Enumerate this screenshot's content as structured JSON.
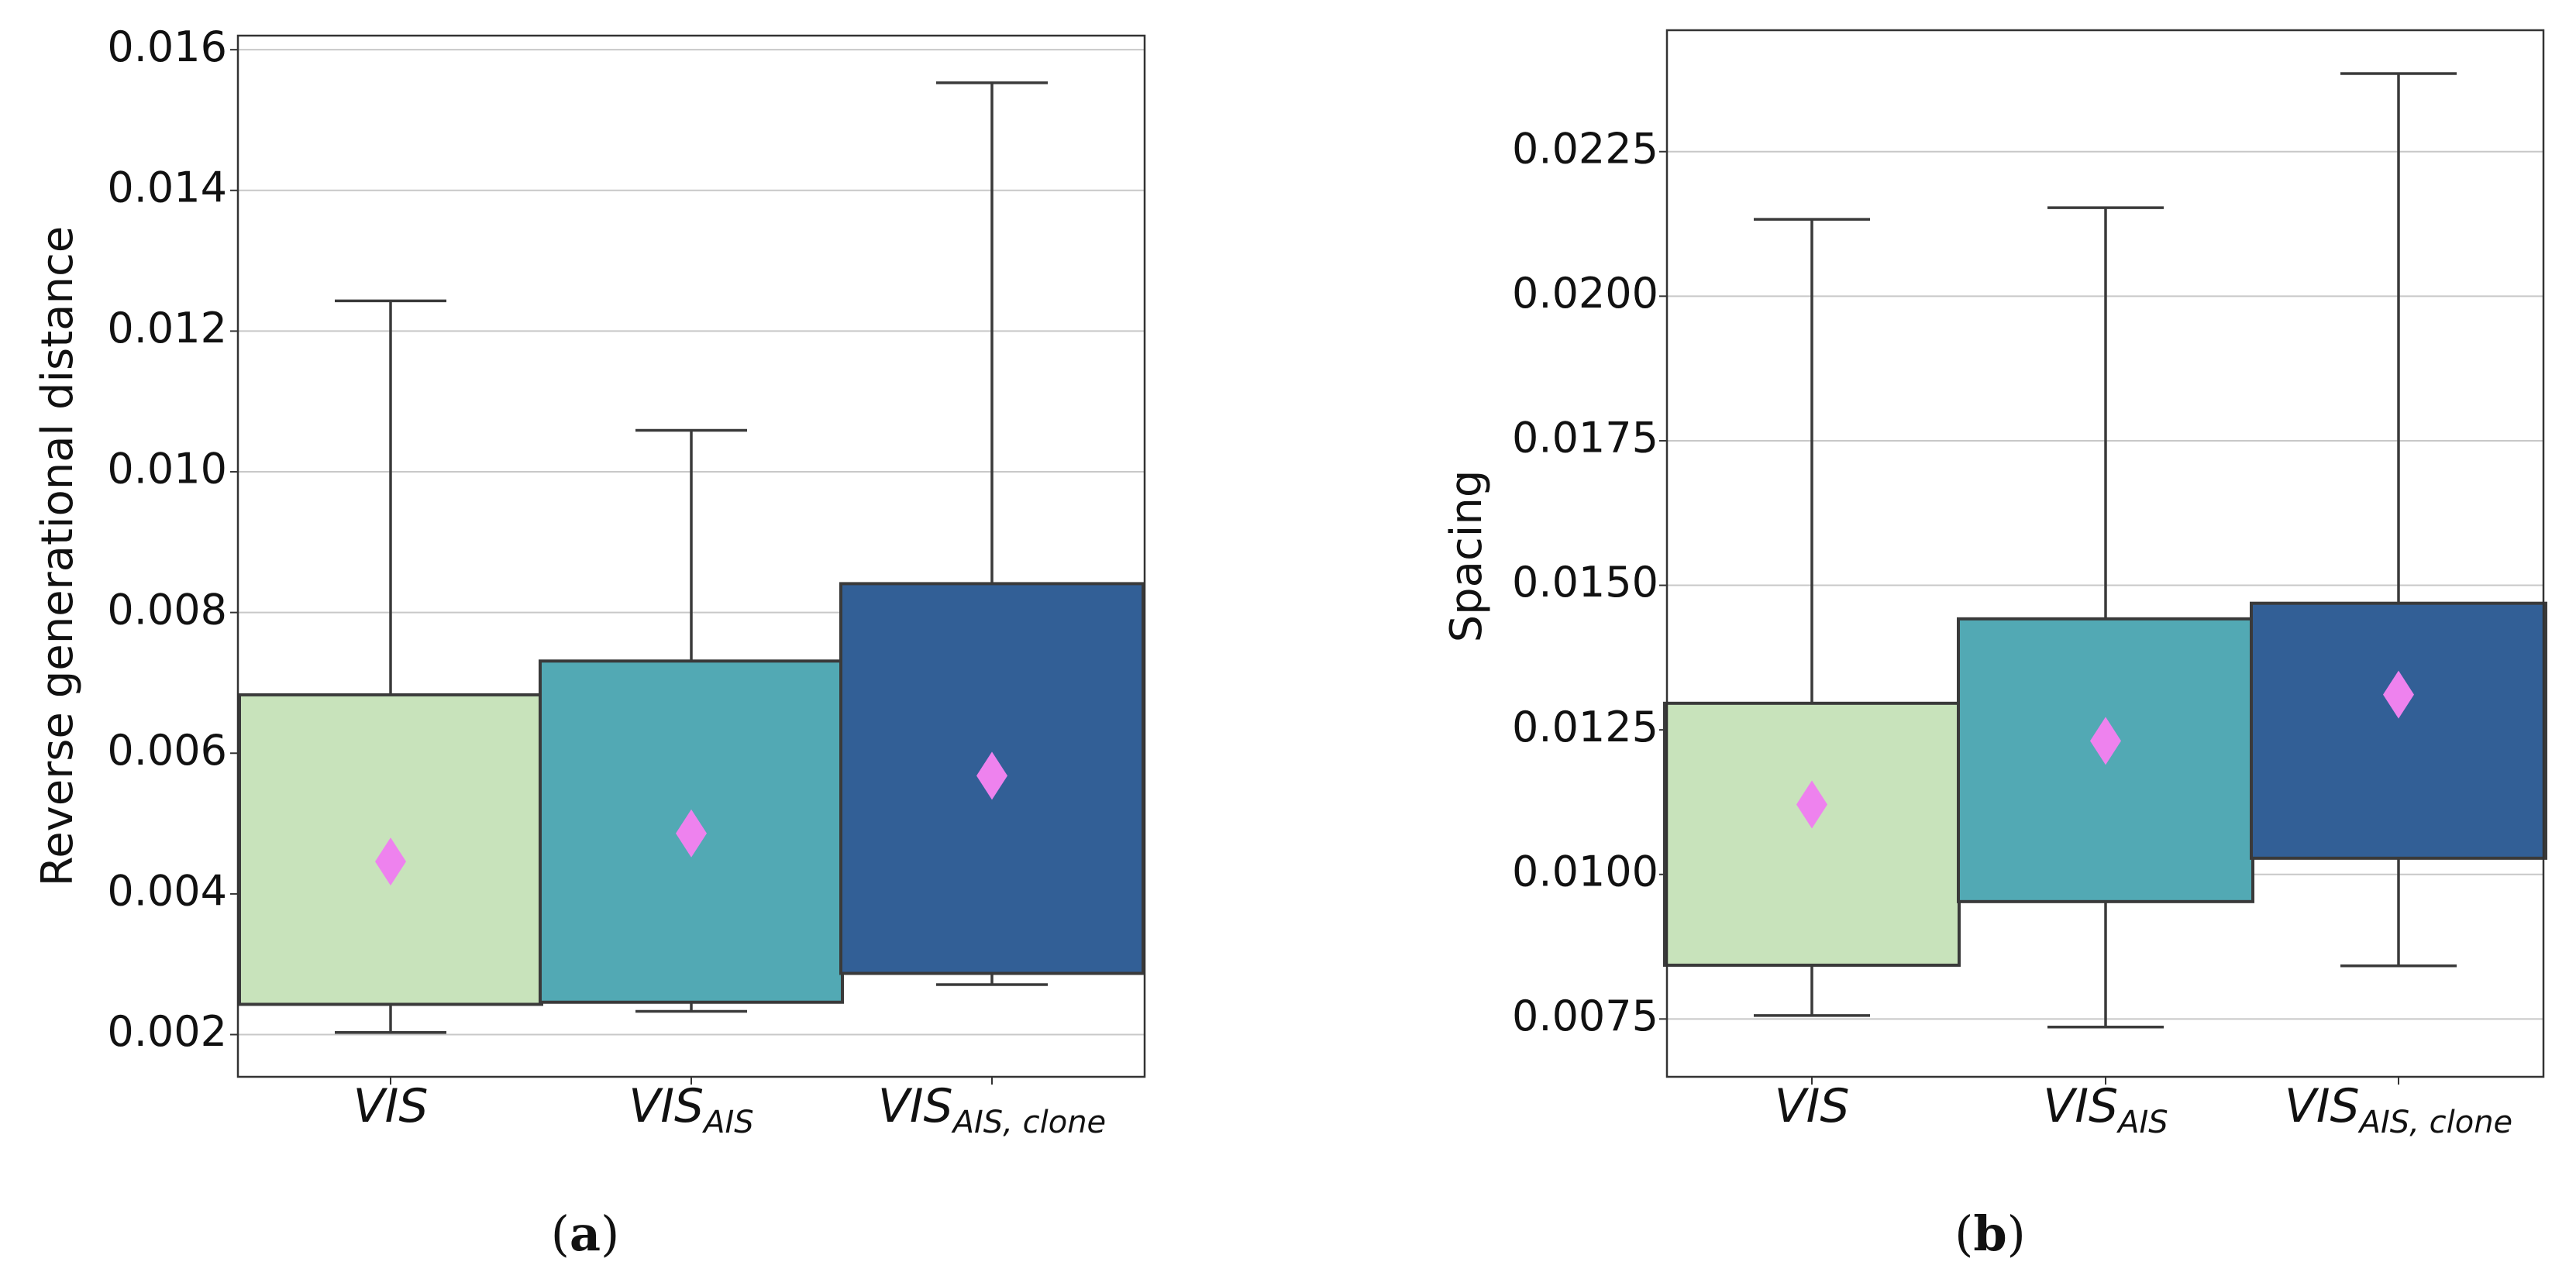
{
  "chart_data": [
    {
      "type": "box",
      "panel_label": "a",
      "title": "",
      "ylabel": "Reverse generational distance",
      "xlabel": "",
      "ylim": [
        0.0014,
        0.0162
      ],
      "yticks": [
        0.002,
        0.004,
        0.006,
        0.008,
        0.01,
        0.012,
        0.014,
        0.016
      ],
      "ytick_labels": [
        "0.002",
        "0.004",
        "0.006",
        "0.008",
        "0.010",
        "0.012",
        "0.014",
        "0.016"
      ],
      "grid": "horizontal",
      "categories": [
        {
          "base": "VIS",
          "sub": ""
        },
        {
          "base": "VIS",
          "sub": "AIS"
        },
        {
          "base": "VIS",
          "sub": "AIS, clone"
        }
      ],
      "boxes": [
        {
          "whisker_low": 0.00203,
          "q1": 0.00243,
          "q3": 0.00683,
          "whisker_high": 0.01243,
          "mean": 0.00446,
          "color": "#c8e3bb"
        },
        {
          "whisker_low": 0.00233,
          "q1": 0.00246,
          "q3": 0.00731,
          "whisker_high": 0.01059,
          "mean": 0.00486,
          "color": "#52a9b4"
        },
        {
          "whisker_low": 0.00271,
          "q1": 0.00287,
          "q3": 0.00841,
          "whisker_high": 0.01553,
          "mean": 0.00568,
          "color": "#325f96"
        }
      ],
      "mean_marker": {
        "shape": "diamond",
        "color": "#ee82ee"
      }
    },
    {
      "type": "box",
      "panel_label": "b",
      "title": "",
      "ylabel": "Spacing",
      "xlabel": "",
      "ylim": [
        0.0065,
        0.0246
      ],
      "yticks": [
        0.0075,
        0.01,
        0.0125,
        0.015,
        0.0175,
        0.02,
        0.0225
      ],
      "ytick_labels": [
        "0.0075",
        "0.0100",
        "0.0125",
        "0.0150",
        "0.0175",
        "0.0200",
        "0.0225"
      ],
      "grid": "horizontal",
      "categories": [
        {
          "base": "VIS",
          "sub": ""
        },
        {
          "base": "VIS",
          "sub": "AIS"
        },
        {
          "base": "VIS",
          "sub": "AIS, clone"
        }
      ],
      "boxes": [
        {
          "whisker_low": 0.00756,
          "q1": 0.00843,
          "q3": 0.01296,
          "whisker_high": 0.02133,
          "mean": 0.01121,
          "color": "#c8e3bb"
        },
        {
          "whisker_low": 0.00736,
          "q1": 0.00953,
          "q3": 0.01442,
          "whisker_high": 0.02153,
          "mean": 0.01231,
          "color": "#52a9b4"
        },
        {
          "whisker_low": 0.00842,
          "q1": 0.01028,
          "q3": 0.01469,
          "whisker_high": 0.02385,
          "mean": 0.01311,
          "color": "#325f96"
        }
      ],
      "mean_marker": {
        "shape": "diamond",
        "color": "#ee82ee"
      }
    }
  ],
  "colors": {
    "axis": "#333333",
    "grid": "#c8c8c8",
    "box_edge": "#3a3a3a"
  }
}
